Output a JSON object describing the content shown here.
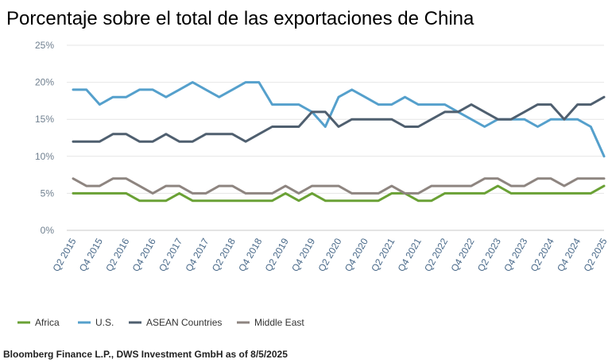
{
  "chart_data": {
    "type": "line",
    "title": "Porcentaje sobre el total de las exportaciones de China",
    "source": "Bloomberg Finance L.P., DWS Investment GmbH as of 8/5/2025",
    "ylim": [
      0,
      25
    ],
    "yticks": [
      0,
      5,
      10,
      15,
      20,
      25
    ],
    "ytick_labels": [
      "0%",
      "5%",
      "10%",
      "15%",
      "20%",
      "25%"
    ],
    "xtick_labels": [
      "Q2 2015",
      "Q4 2015",
      "Q2 2016",
      "Q4 2016",
      "Q2 2017",
      "Q4 2017",
      "Q2 2018",
      "Q4 2018",
      "Q2 2019",
      "Q4 2019",
      "Q2 2020",
      "Q4 2020",
      "Q2 2021",
      "Q4 2021",
      "Q2 2022",
      "Q4 2022",
      "Q2 2023",
      "Q4 2023",
      "Q2 2024",
      "Q4 2024",
      "Q2 2025"
    ],
    "n_points": 41,
    "legend_position": "bottom",
    "series": [
      {
        "name": "Africa",
        "color": "#6aa135",
        "values": [
          5,
          5,
          5,
          5,
          5,
          4,
          4,
          4,
          5,
          4,
          4,
          4,
          4,
          4,
          4,
          4,
          5,
          4,
          5,
          4,
          4,
          4,
          4,
          4,
          5,
          5,
          4,
          4,
          5,
          5,
          5,
          5,
          6,
          5,
          5,
          5,
          5,
          5,
          5,
          5,
          6
        ]
      },
      {
        "name": "U.S.",
        "color": "#55a0cc",
        "values": [
          19,
          19,
          17,
          18,
          18,
          19,
          19,
          18,
          19,
          20,
          19,
          18,
          19,
          20,
          20,
          17,
          17,
          17,
          16,
          14,
          18,
          19,
          18,
          17,
          17,
          18,
          17,
          17,
          17,
          16,
          15,
          14,
          15,
          15,
          15,
          14,
          15,
          15,
          15,
          14,
          10
        ]
      },
      {
        "name": "ASEAN Countries",
        "color": "#4f5f6f",
        "values": [
          12,
          12,
          12,
          13,
          13,
          12,
          12,
          13,
          12,
          12,
          13,
          13,
          13,
          12,
          13,
          14,
          14,
          14,
          16,
          16,
          14,
          15,
          15,
          15,
          15,
          14,
          14,
          15,
          16,
          16,
          17,
          16,
          15,
          15,
          16,
          17,
          17,
          15,
          17,
          17,
          18
        ]
      },
      {
        "name": "Middle East",
        "color": "#8e8580",
        "values": [
          7,
          6,
          6,
          7,
          7,
          6,
          5,
          6,
          6,
          5,
          5,
          6,
          6,
          5,
          5,
          5,
          6,
          5,
          6,
          6,
          6,
          5,
          5,
          5,
          6,
          5,
          5,
          6,
          6,
          6,
          6,
          7,
          7,
          6,
          6,
          7,
          7,
          6,
          7,
          7,
          7
        ]
      }
    ]
  }
}
